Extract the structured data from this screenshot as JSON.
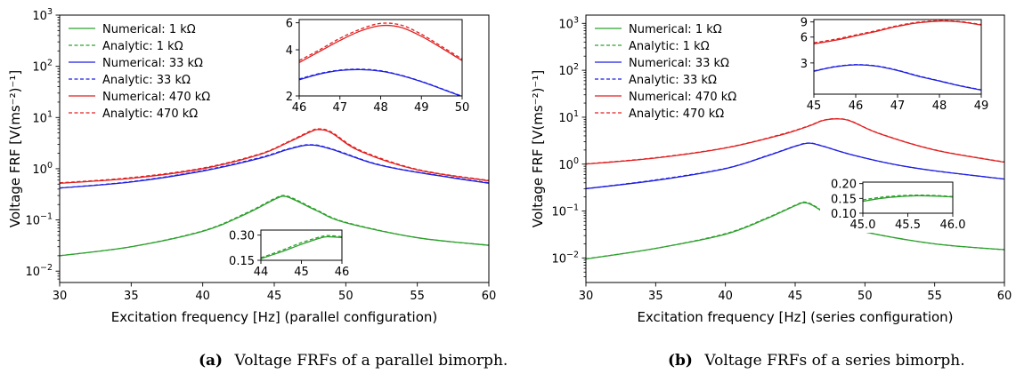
{
  "chart_data": [
    {
      "type": "line",
      "subfigure": "a",
      "caption_label": "(a)",
      "caption_text": "Voltage FRFs of a parallel bimorph.",
      "xlabel": "Excitation frequency [Hz]  (parallel configuration)",
      "ylabel": "Voltage FRF [V(ms⁻²)⁻¹]",
      "yscale": "log",
      "xlim": [
        30,
        60
      ],
      "ylim": [
        0.006,
        1000
      ],
      "xticks": [
        "30",
        "35",
        "40",
        "45",
        "50",
        "55",
        "60"
      ],
      "yticks": [
        {
          "base": "10",
          "exp": "−2",
          "value": 0.01
        },
        {
          "base": "10",
          "exp": "−1",
          "value": 0.1
        },
        {
          "base": "10",
          "exp": "0",
          "value": 1
        },
        {
          "base": "10",
          "exp": "1",
          "value": 10
        },
        {
          "base": "10",
          "exp": "2",
          "value": 100
        },
        {
          "base": "10",
          "exp": "3",
          "value": 1000
        }
      ],
      "legend_position": "top-left",
      "series": [
        {
          "name": "Numerical: 1 kΩ",
          "color": "#2ca02c",
          "dash": "solid",
          "x": [
            30,
            35,
            40,
            43,
            45,
            45.7,
            46.5,
            48,
            50,
            55,
            60
          ],
          "y": [
            0.02,
            0.03,
            0.06,
            0.13,
            0.25,
            0.29,
            0.24,
            0.15,
            0.088,
            0.045,
            0.032
          ]
        },
        {
          "name": "Analytic: 1 kΩ",
          "color": "#2ca02c",
          "dash": "dashed",
          "x": [
            30,
            35,
            40,
            43,
            45,
            45.7,
            46.5,
            48,
            50,
            55,
            60
          ],
          "y": [
            0.02,
            0.03,
            0.061,
            0.135,
            0.26,
            0.3,
            0.25,
            0.155,
            0.09,
            0.045,
            0.032
          ]
        },
        {
          "name": "Numerical: 33 kΩ",
          "color": "#1f1fe0",
          "dash": "solid",
          "x": [
            30,
            35,
            40,
            44,
            46,
            47.5,
            49,
            52,
            55,
            60
          ],
          "y": [
            0.42,
            0.55,
            0.9,
            1.6,
            2.4,
            2.9,
            2.4,
            1.25,
            0.85,
            0.52
          ]
        },
        {
          "name": "Analytic: 33 kΩ",
          "color": "#1f1fe0",
          "dash": "dashed",
          "x": [
            30,
            35,
            40,
            44,
            46,
            47.5,
            49,
            52,
            55,
            60
          ],
          "y": [
            0.42,
            0.56,
            0.92,
            1.65,
            2.45,
            2.95,
            2.45,
            1.27,
            0.86,
            0.53
          ]
        },
        {
          "name": "Numerical: 470 kΩ",
          "color": "#e02020",
          "dash": "solid",
          "x": [
            30,
            35,
            40,
            44,
            46,
            47.5,
            48.1,
            49,
            51,
            55,
            60
          ],
          "y": [
            0.52,
            0.65,
            1.0,
            1.9,
            3.3,
            5.2,
            5.8,
            5.0,
            2.2,
            0.95,
            0.58
          ]
        },
        {
          "name": "Analytic: 470 kΩ",
          "color": "#e02020",
          "dash": "dashed",
          "x": [
            30,
            35,
            40,
            44,
            46,
            47.5,
            48.1,
            49,
            51,
            55,
            60
          ],
          "y": [
            0.53,
            0.67,
            1.03,
            1.95,
            3.4,
            5.4,
            6.0,
            5.2,
            2.3,
            0.97,
            0.59
          ]
        }
      ],
      "insets": [
        {
          "id": "a-top",
          "xlim": [
            46,
            50
          ],
          "ylim": [
            2,
            6.3
          ],
          "yscale": "log",
          "xticks": [
            "46",
            "47",
            "48",
            "49",
            "50"
          ],
          "yticks": [
            {
              "label": "2",
              "value": 2
            },
            {
              "label": "4",
              "value": 4
            },
            {
              "label": "6",
              "value": 6
            }
          ],
          "series_ref": [
            "Numerical: 33 kΩ",
            "Analytic: 33 kΩ",
            "Numerical: 470 kΩ",
            "Analytic: 470 kΩ"
          ],
          "curves": [
            {
              "color": "#1f1fe0",
              "dash": "solid",
              "x": [
                46,
                46.5,
                47,
                47.5,
                48,
                48.5,
                49,
                49.5,
                50
              ],
              "y": [
                2.55,
                2.78,
                2.93,
                2.97,
                2.9,
                2.72,
                2.48,
                2.22,
                1.98
              ]
            },
            {
              "color": "#1f1fe0",
              "dash": "dashed",
              "x": [
                46,
                46.5,
                47,
                47.5,
                48,
                48.5,
                49,
                49.5,
                50
              ],
              "y": [
                2.58,
                2.8,
                2.95,
                2.99,
                2.92,
                2.73,
                2.49,
                2.23,
                1.99
              ]
            },
            {
              "color": "#e02020",
              "dash": "solid",
              "x": [
                46,
                46.5,
                47,
                47.5,
                48,
                48.5,
                49,
                49.5,
                50
              ],
              "y": [
                3.3,
                3.9,
                4.6,
                5.3,
                5.75,
                5.6,
                4.9,
                4.1,
                3.4
              ]
            },
            {
              "color": "#e02020",
              "dash": "dashed",
              "x": [
                46,
                46.5,
                47,
                47.5,
                48,
                48.5,
                49,
                49.5,
                50
              ],
              "y": [
                3.4,
                4.0,
                4.75,
                5.45,
                5.95,
                5.8,
                5.05,
                4.2,
                3.48
              ]
            }
          ]
        },
        {
          "id": "a-bottom",
          "xlim": [
            44,
            46
          ],
          "ylim": [
            0.15,
            0.33
          ],
          "yscale": "linear",
          "xticks": [
            "44",
            "45",
            "46"
          ],
          "yticks": [
            {
              "label": "0.15",
              "value": 0.15
            },
            {
              "label": "0.30",
              "value": 0.3
            }
          ],
          "series_ref": [
            "Numerical: 1 kΩ",
            "Analytic: 1 kΩ"
          ],
          "curves": [
            {
              "color": "#2ca02c",
              "dash": "solid",
              "x": [
                44,
                44.5,
                45,
                45.5,
                45.7,
                46
              ],
              "y": [
                0.16,
                0.2,
                0.245,
                0.285,
                0.29,
                0.285
              ]
            },
            {
              "color": "#2ca02c",
              "dash": "dashed",
              "x": [
                44,
                44.5,
                45,
                45.5,
                45.7,
                46
              ],
              "y": [
                0.165,
                0.208,
                0.255,
                0.292,
                0.297,
                0.29
              ]
            }
          ]
        }
      ]
    },
    {
      "type": "line",
      "subfigure": "b",
      "caption_label": "(b)",
      "caption_text": "Voltage FRFs of a series bimorph.",
      "xlabel": "Excitation frequency [Hz]  (series configuration)",
      "ylabel": "Voltage FRF [V(ms⁻²)⁻¹]",
      "yscale": "log",
      "xlim": [
        30,
        60
      ],
      "ylim": [
        0.003,
        1500
      ],
      "xticks": [
        "30",
        "35",
        "40",
        "45",
        "50",
        "55",
        "60"
      ],
      "yticks": [
        {
          "base": "10",
          "exp": "−2",
          "value": 0.01
        },
        {
          "base": "10",
          "exp": "−1",
          "value": 0.1
        },
        {
          "base": "10",
          "exp": "0",
          "value": 1
        },
        {
          "base": "10",
          "exp": "1",
          "value": 10
        },
        {
          "base": "10",
          "exp": "2",
          "value": 100
        },
        {
          "base": "10",
          "exp": "3",
          "value": 1000
        }
      ],
      "legend_position": "top-left",
      "series": [
        {
          "name": "Numerical: 1 kΩ",
          "color": "#2ca02c",
          "dash": "solid",
          "x": [
            30,
            35,
            40,
            43,
            45,
            45.7,
            46.5,
            48,
            50,
            55,
            60
          ],
          "y": [
            0.0095,
            0.016,
            0.032,
            0.07,
            0.13,
            0.15,
            0.12,
            0.06,
            0.036,
            0.02,
            0.015
          ]
        },
        {
          "name": "Analytic: 1 kΩ",
          "color": "#2ca02c",
          "dash": "dashed",
          "x": [
            30,
            35,
            40,
            43,
            45,
            45.7,
            46.5,
            48,
            50,
            55,
            60
          ],
          "y": [
            0.0096,
            0.016,
            0.033,
            0.072,
            0.133,
            0.155,
            0.123,
            0.061,
            0.036,
            0.02,
            0.015
          ]
        },
        {
          "name": "Numerical: 33 kΩ",
          "color": "#1f1fe0",
          "dash": "solid",
          "x": [
            30,
            35,
            40,
            43,
            45,
            46,
            47,
            49,
            52,
            55,
            60
          ],
          "y": [
            0.3,
            0.45,
            0.8,
            1.5,
            2.4,
            2.8,
            2.4,
            1.6,
            1.0,
            0.72,
            0.48
          ]
        },
        {
          "name": "Analytic: 33 kΩ",
          "color": "#1f1fe0",
          "dash": "dashed",
          "x": [
            30,
            35,
            40,
            43,
            45,
            46,
            47,
            49,
            52,
            55,
            60
          ],
          "y": [
            0.3,
            0.46,
            0.81,
            1.52,
            2.42,
            2.82,
            2.42,
            1.6,
            1.0,
            0.72,
            0.48
          ]
        },
        {
          "name": "Numerical: 470 kΩ",
          "color": "#e02020",
          "dash": "solid",
          "x": [
            30,
            35,
            40,
            44,
            46,
            47,
            48,
            49,
            51,
            55,
            60
          ],
          "y": [
            1.0,
            1.35,
            2.2,
            4.2,
            6.5,
            8.5,
            9.2,
            8.2,
            4.5,
            2.0,
            1.1
          ]
        },
        {
          "name": "Analytic: 470 kΩ",
          "color": "#e02020",
          "dash": "dashed",
          "x": [
            30,
            35,
            40,
            44,
            46,
            47,
            48,
            49,
            51,
            55,
            60
          ],
          "y": [
            1.01,
            1.37,
            2.23,
            4.3,
            6.6,
            8.6,
            9.3,
            8.3,
            4.55,
            2.02,
            1.11
          ]
        }
      ],
      "insets": [
        {
          "id": "b-top",
          "xlim": [
            45,
            49
          ],
          "ylim": [
            1.3,
            9.6
          ],
          "yscale": "log",
          "xticks": [
            "45",
            "46",
            "47",
            "48",
            "49"
          ],
          "yticks": [
            {
              "label": "3",
              "value": 3
            },
            {
              "label": "6",
              "value": 6
            },
            {
              "label": "9",
              "value": 9
            }
          ],
          "series_ref": [
            "Numerical: 33 kΩ",
            "Analytic: 33 kΩ",
            "Numerical: 470 kΩ",
            "Analytic: 470 kΩ"
          ],
          "curves": [
            {
              "color": "#1f1fe0",
              "dash": "solid",
              "x": [
                45,
                45.5,
                46,
                46.5,
                47,
                47.5,
                48,
                48.5,
                49
              ],
              "y": [
                2.4,
                2.7,
                2.85,
                2.75,
                2.45,
                2.1,
                1.85,
                1.62,
                1.45
              ]
            },
            {
              "color": "#1f1fe0",
              "dash": "dashed",
              "x": [
                45,
                45.5,
                46,
                46.5,
                47,
                47.5,
                48,
                48.5,
                49
              ],
              "y": [
                2.42,
                2.72,
                2.87,
                2.77,
                2.47,
                2.12,
                1.86,
                1.63,
                1.46
              ]
            },
            {
              "color": "#e02020",
              "dash": "solid",
              "x": [
                45,
                45.5,
                46,
                46.5,
                47,
                47.5,
                48,
                48.5,
                49
              ],
              "y": [
                5.0,
                5.5,
                6.2,
                7.0,
                8.0,
                8.8,
                9.2,
                9.0,
                8.3
              ]
            },
            {
              "color": "#e02020",
              "dash": "dashed",
              "x": [
                45,
                45.5,
                46,
                46.5,
                47,
                47.5,
                48,
                48.5,
                49
              ],
              "y": [
                5.15,
                5.65,
                6.35,
                7.15,
                8.15,
                8.95,
                9.3,
                9.1,
                8.4
              ]
            }
          ]
        },
        {
          "id": "b-bottom",
          "xlim": [
            45,
            46
          ],
          "ylim": [
            0.1,
            0.205
          ],
          "yscale": "linear",
          "xticks": [
            "45.0",
            "45.5",
            "46.0"
          ],
          "yticks": [
            {
              "label": "0.10",
              "value": 0.1
            },
            {
              "label": "0.15",
              "value": 0.15
            },
            {
              "label": "0.20",
              "value": 0.2
            }
          ],
          "series_ref": [
            "Numerical: 1 kΩ",
            "Analytic: 1 kΩ"
          ],
          "curves": [
            {
              "color": "#2ca02c",
              "dash": "solid",
              "x": [
                45,
                45.2,
                45.4,
                45.6,
                45.8,
                46
              ],
              "y": [
                0.14,
                0.15,
                0.156,
                0.159,
                0.158,
                0.155
              ]
            },
            {
              "color": "#2ca02c",
              "dash": "dashed",
              "x": [
                45,
                45.2,
                45.4,
                45.6,
                45.8,
                46
              ],
              "y": [
                0.145,
                0.154,
                0.159,
                0.161,
                0.16,
                0.156
              ]
            }
          ]
        }
      ]
    }
  ]
}
